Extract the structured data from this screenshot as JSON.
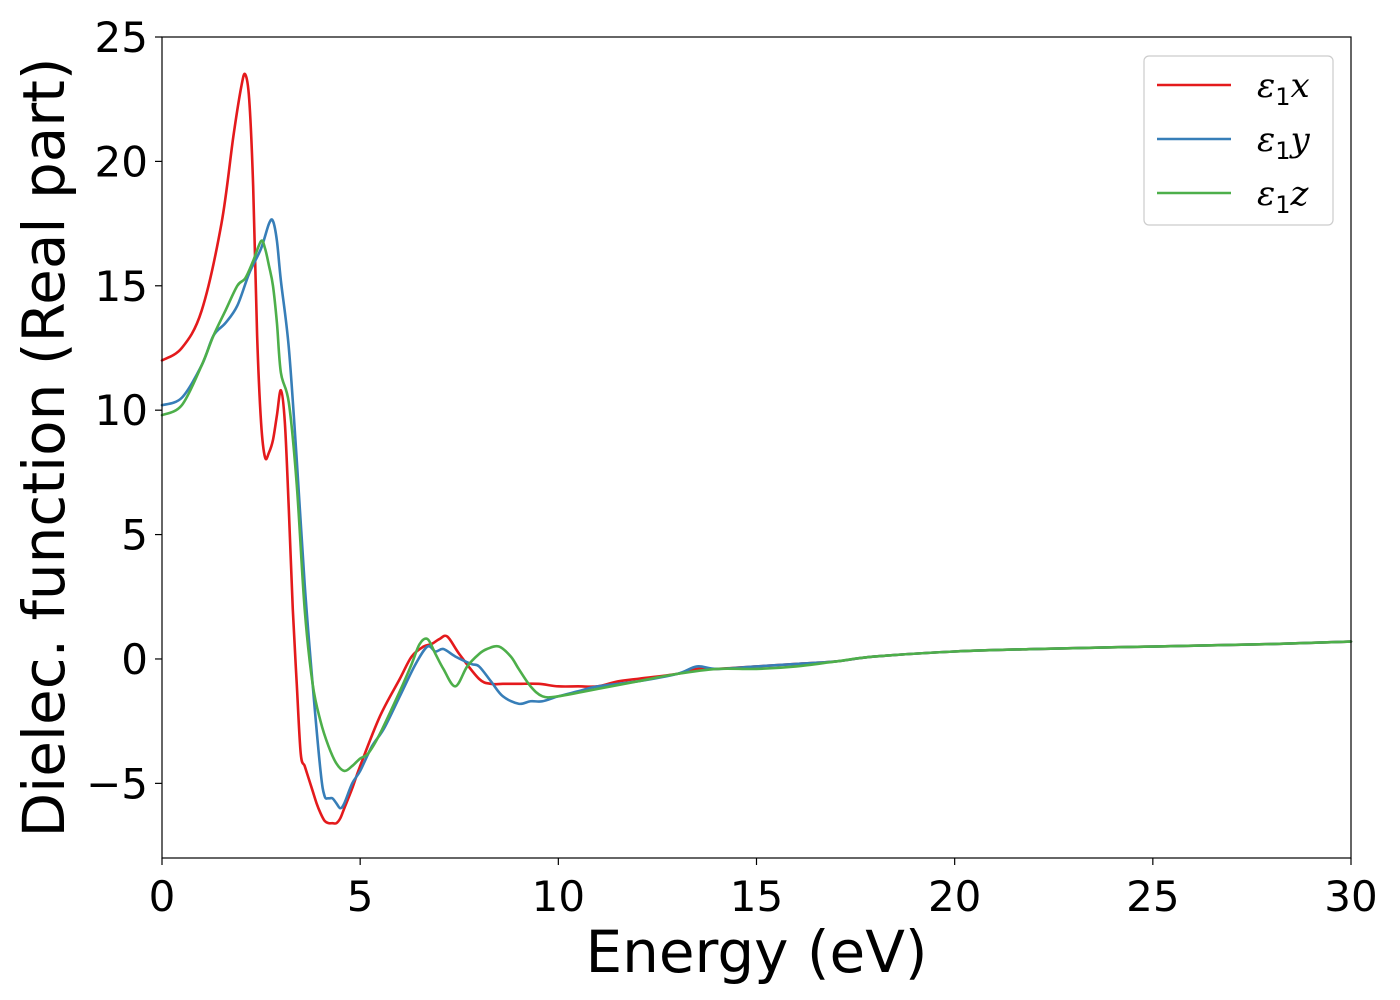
{
  "chart_data": {
    "type": "line",
    "xlabel": "Energy (eV)",
    "ylabel": "Dielec. function (Real part)",
    "xlim": [
      0,
      30
    ],
    "ylim": [
      -8,
      25
    ],
    "xticks": [
      0,
      5,
      10,
      15,
      20,
      25,
      30
    ],
    "yticks": [
      -5,
      0,
      5,
      10,
      15,
      20,
      25
    ],
    "xtick_labels": [
      "0",
      "5",
      "10",
      "15",
      "20",
      "25",
      "30"
    ],
    "ytick_labels": [
      "−5",
      "0",
      "5",
      "10",
      "15",
      "20",
      "25"
    ],
    "grid": false,
    "legend_position": "top-right",
    "series": [
      {
        "name": "ε₁x",
        "legend_main": "ε",
        "legend_sub": "1",
        "legend_var": "x",
        "color": "#e41a1c",
        "x": [
          0,
          0.5,
          1.0,
          1.5,
          1.8,
          2.0,
          2.1,
          2.2,
          2.3,
          2.4,
          2.5,
          2.6,
          2.7,
          2.8,
          2.9,
          3.0,
          3.1,
          3.2,
          3.3,
          3.4,
          3.5,
          3.6,
          3.7,
          3.8,
          3.9,
          4.0,
          4.1,
          4.2,
          4.3,
          4.4,
          4.5,
          4.6,
          4.8,
          5.0,
          5.5,
          6.0,
          6.3,
          6.6,
          6.8,
          7.0,
          7.2,
          7.5,
          8.0,
          8.3,
          8.6,
          9.0,
          9.5,
          10.0,
          10.5,
          11.0,
          11.5,
          12.0,
          13.0,
          13.5,
          14.0,
          15.0,
          16.0,
          17.0,
          18.0,
          20.0,
          22.0,
          25.0,
          28.0,
          30.0
        ],
        "y": [
          12.0,
          12.5,
          14.0,
          17.5,
          21.0,
          23.0,
          23.5,
          22.5,
          19.0,
          13.0,
          9.5,
          8.1,
          8.3,
          8.8,
          9.8,
          10.8,
          9.5,
          6.0,
          2.0,
          -1.0,
          -3.8,
          -4.3,
          -4.8,
          -5.3,
          -5.8,
          -6.2,
          -6.5,
          -6.6,
          -6.6,
          -6.6,
          -6.4,
          -6.0,
          -5.2,
          -4.3,
          -2.3,
          -0.8,
          0.1,
          0.5,
          0.6,
          0.8,
          0.9,
          0.2,
          -0.8,
          -1.0,
          -1.0,
          -1.0,
          -1.0,
          -1.1,
          -1.1,
          -1.1,
          -0.9,
          -0.8,
          -0.6,
          -0.4,
          -0.4,
          -0.3,
          -0.2,
          -0.1,
          0.1,
          0.3,
          0.4,
          0.5,
          0.6,
          0.7
        ]
      },
      {
        "name": "ε₁y",
        "legend_main": "ε",
        "legend_sub": "1",
        "legend_var": "y",
        "color": "#377eb8",
        "x": [
          0,
          0.5,
          1.0,
          1.3,
          1.6,
          1.9,
          2.2,
          2.5,
          2.7,
          2.8,
          2.9,
          3.0,
          3.2,
          3.4,
          3.6,
          3.8,
          4.0,
          4.1,
          4.2,
          4.3,
          4.4,
          4.5,
          4.6,
          4.8,
          5.0,
          5.3,
          5.6,
          6.0,
          6.4,
          6.7,
          6.9,
          7.1,
          7.4,
          7.8,
          8.0,
          8.3,
          8.6,
          9.0,
          9.3,
          9.6,
          10.0,
          10.5,
          11.0,
          12.0,
          13.0,
          13.5,
          14.0,
          15.0,
          16.0,
          17.0,
          18.0,
          20.0,
          22.0,
          25.0,
          28.0,
          30.0
        ],
        "y": [
          10.2,
          10.5,
          11.8,
          13.0,
          13.5,
          14.2,
          15.5,
          16.5,
          17.5,
          17.6,
          16.8,
          15.2,
          12.5,
          8.0,
          3.0,
          -1.0,
          -4.5,
          -5.5,
          -5.6,
          -5.6,
          -5.8,
          -6.0,
          -5.8,
          -5.0,
          -4.5,
          -3.5,
          -2.8,
          -1.5,
          -0.2,
          0.5,
          0.3,
          0.4,
          0.1,
          -0.2,
          -0.3,
          -0.9,
          -1.5,
          -1.8,
          -1.7,
          -1.7,
          -1.5,
          -1.3,
          -1.1,
          -0.9,
          -0.6,
          -0.3,
          -0.4,
          -0.3,
          -0.2,
          -0.1,
          0.1,
          0.3,
          0.4,
          0.5,
          0.6,
          0.7
        ]
      },
      {
        "name": "ε₁z",
        "legend_main": "ε",
        "legend_sub": "1",
        "legend_var": "z",
        "color": "#4daf4a",
        "x": [
          0,
          0.5,
          1.0,
          1.3,
          1.6,
          1.9,
          2.1,
          2.3,
          2.5,
          2.6,
          2.7,
          2.8,
          2.9,
          3.0,
          3.2,
          3.4,
          3.6,
          3.8,
          4.0,
          4.2,
          4.4,
          4.6,
          4.8,
          5.0,
          5.2,
          5.5,
          6.0,
          6.3,
          6.5,
          6.7,
          6.9,
          7.1,
          7.4,
          7.7,
          8.0,
          8.2,
          8.5,
          8.8,
          9.0,
          9.3,
          9.6,
          10.0,
          11.0,
          12.0,
          13.0,
          14.0,
          15.0,
          16.0,
          17.0,
          18.0,
          20.0,
          22.0,
          25.0,
          28.0,
          30.0
        ],
        "y": [
          9.8,
          10.2,
          11.8,
          13.0,
          14.0,
          15.0,
          15.3,
          16.0,
          16.8,
          16.5,
          15.8,
          15.0,
          13.5,
          11.5,
          10.3,
          7.0,
          2.0,
          -1.0,
          -2.5,
          -3.5,
          -4.2,
          -4.5,
          -4.3,
          -4.0,
          -3.8,
          -3.0,
          -1.3,
          -0.2,
          0.6,
          0.8,
          0.2,
          -0.4,
          -1.1,
          -0.3,
          0.2,
          0.4,
          0.5,
          0.1,
          -0.4,
          -1.1,
          -1.5,
          -1.5,
          -1.2,
          -0.9,
          -0.6,
          -0.4,
          -0.4,
          -0.3,
          -0.1,
          0.1,
          0.3,
          0.4,
          0.5,
          0.6,
          0.7
        ]
      }
    ]
  }
}
